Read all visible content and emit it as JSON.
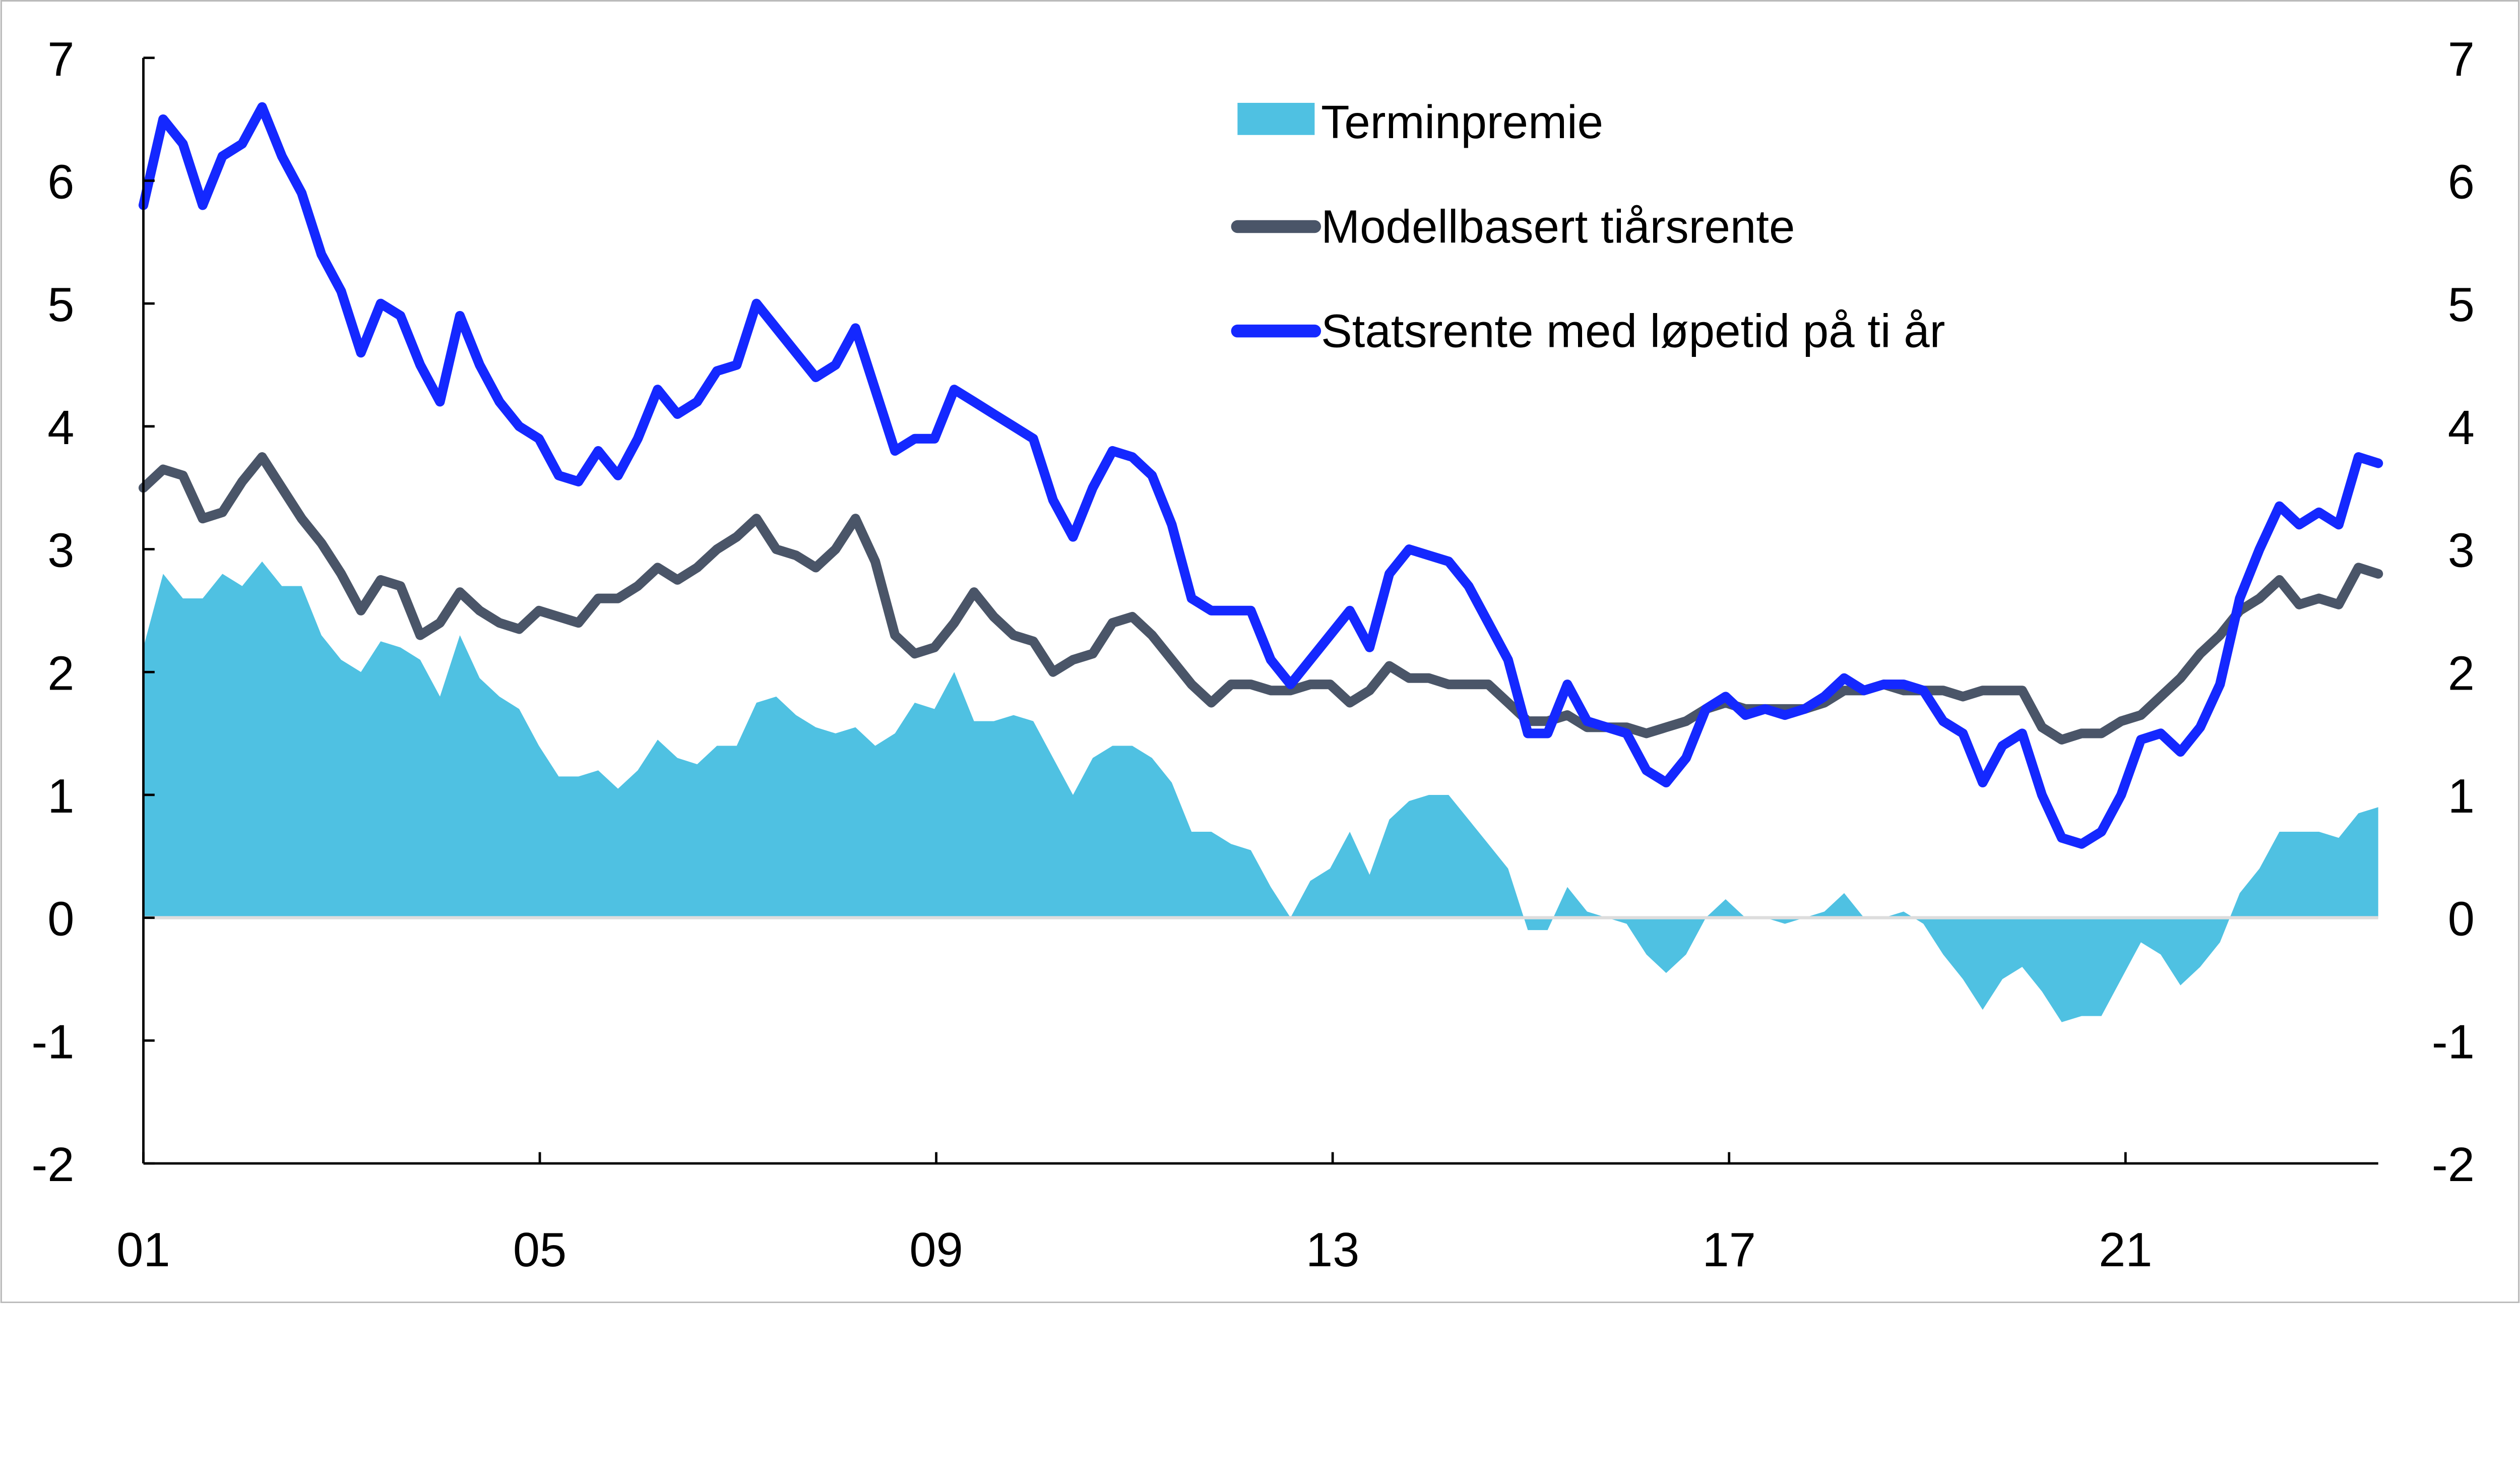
{
  "chart_data": {
    "type": "line",
    "title": "",
    "xlabel": "",
    "ylabel": "",
    "x_start": 2001,
    "x_end": 2023.55,
    "xlim": [
      2001,
      2023.55
    ],
    "ylim": [
      -2,
      7
    ],
    "x_ticks": [
      2001,
      2005,
      2009,
      2013,
      2017,
      2021
    ],
    "x_tick_labels": [
      "01",
      "05",
      "09",
      "13",
      "17",
      "21"
    ],
    "y_ticks": [
      -2,
      -1,
      0,
      1,
      2,
      3,
      4,
      5,
      6,
      7
    ],
    "y_tick_labels": [
      "-2",
      "-1",
      "0",
      "1",
      "2",
      "3",
      "4",
      "5",
      "6",
      "7"
    ],
    "grid": false,
    "legend_position": "top-center",
    "series": [
      {
        "name": "Terminpremie",
        "kind": "area",
        "color": "#4FC1E2",
        "values": [
          2.2,
          2.8,
          2.6,
          2.6,
          2.8,
          2.7,
          2.9,
          2.7,
          2.7,
          2.3,
          2.1,
          2.0,
          2.25,
          2.2,
          2.1,
          1.8,
          2.3,
          1.95,
          1.8,
          1.7,
          1.4,
          1.15,
          1.15,
          1.2,
          1.05,
          1.2,
          1.45,
          1.3,
          1.25,
          1.4,
          1.4,
          1.75,
          1.8,
          1.65,
          1.55,
          1.5,
          1.55,
          1.4,
          1.5,
          1.75,
          1.7,
          2.0,
          1.6,
          1.6,
          1.65,
          1.6,
          1.3,
          1.0,
          1.3,
          1.4,
          1.4,
          1.3,
          1.1,
          0.7,
          0.7,
          0.6,
          0.55,
          0.25,
          0.0,
          0.3,
          0.4,
          0.7,
          0.35,
          0.8,
          0.95,
          1.0,
          1.0,
          0.8,
          0.6,
          0.4,
          -0.1,
          -0.1,
          0.25,
          0.05,
          0.0,
          -0.05,
          -0.3,
          -0.45,
          -0.3,
          0.0,
          0.15,
          0.0,
          0.0,
          -0.05,
          0.0,
          0.05,
          0.2,
          0.0,
          0.0,
          0.05,
          -0.05,
          -0.3,
          -0.5,
          -0.75,
          -0.5,
          -0.4,
          -0.6,
          -0.85,
          -0.8,
          -0.8,
          -0.5,
          -0.2,
          -0.3,
          -0.55,
          -0.4,
          -0.2,
          0.2,
          0.4,
          0.7,
          0.7,
          0.7,
          0.65,
          0.85,
          0.9
        ]
      },
      {
        "name": "Modellbasert tiårsrente",
        "kind": "line",
        "color": "#4A5568",
        "values": [
          3.5,
          3.65,
          3.6,
          3.25,
          3.3,
          3.55,
          3.75,
          3.5,
          3.25,
          3.05,
          2.8,
          2.5,
          2.75,
          2.7,
          2.3,
          2.4,
          2.65,
          2.5,
          2.4,
          2.35,
          2.5,
          2.45,
          2.4,
          2.6,
          2.6,
          2.7,
          2.85,
          2.75,
          2.85,
          3.0,
          3.1,
          3.25,
          3.0,
          2.95,
          2.85,
          3.0,
          3.25,
          2.9,
          2.3,
          2.15,
          2.2,
          2.4,
          2.65,
          2.45,
          2.3,
          2.25,
          2.0,
          2.1,
          2.15,
          2.4,
          2.45,
          2.3,
          2.1,
          1.9,
          1.75,
          1.9,
          1.9,
          1.85,
          1.85,
          1.9,
          1.9,
          1.75,
          1.85,
          2.05,
          1.95,
          1.95,
          1.9,
          1.9,
          1.9,
          1.75,
          1.6,
          1.6,
          1.65,
          1.55,
          1.55,
          1.55,
          1.5,
          1.55,
          1.6,
          1.7,
          1.75,
          1.7,
          1.7,
          1.7,
          1.7,
          1.75,
          1.85,
          1.85,
          1.9,
          1.85,
          1.85,
          1.85,
          1.8,
          1.85,
          1.85,
          1.85,
          1.55,
          1.45,
          1.5,
          1.5,
          1.6,
          1.65,
          1.8,
          1.95,
          2.15,
          2.3,
          2.5,
          2.6,
          2.75,
          2.55,
          2.6,
          2.55,
          2.85,
          2.8
        ]
      },
      {
        "name": "Statsrente med løpetid på ti år",
        "kind": "line",
        "color": "#1428FF",
        "values": [
          5.8,
          6.5,
          6.3,
          5.8,
          6.2,
          6.3,
          6.6,
          6.2,
          5.9,
          5.4,
          5.1,
          4.6,
          5.0,
          4.9,
          4.5,
          4.2,
          4.9,
          4.5,
          4.2,
          4.0,
          3.9,
          3.6,
          3.55,
          3.8,
          3.6,
          3.9,
          4.3,
          4.1,
          4.2,
          4.45,
          4.5,
          5.0,
          4.8,
          4.6,
          4.4,
          4.5,
          4.8,
          4.3,
          3.8,
          3.9,
          3.9,
          4.3,
          4.2,
          4.1,
          4.0,
          3.9,
          3.4,
          3.1,
          3.5,
          3.8,
          3.75,
          3.6,
          3.2,
          2.6,
          2.5,
          2.5,
          2.5,
          2.1,
          1.9,
          2.1,
          2.3,
          2.5,
          2.2,
          2.8,
          3.0,
          2.95,
          2.9,
          2.7,
          2.4,
          2.1,
          1.5,
          1.5,
          1.9,
          1.6,
          1.55,
          1.5,
          1.2,
          1.1,
          1.3,
          1.7,
          1.8,
          1.65,
          1.7,
          1.65,
          1.7,
          1.8,
          1.95,
          1.85,
          1.9,
          1.9,
          1.85,
          1.6,
          1.5,
          1.1,
          1.4,
          1.5,
          1.0,
          0.65,
          0.6,
          0.7,
          1.0,
          1.45,
          1.5,
          1.35,
          1.55,
          1.9,
          2.6,
          3.0,
          3.35,
          3.2,
          3.3,
          3.2,
          3.75,
          3.7
        ]
      }
    ]
  }
}
